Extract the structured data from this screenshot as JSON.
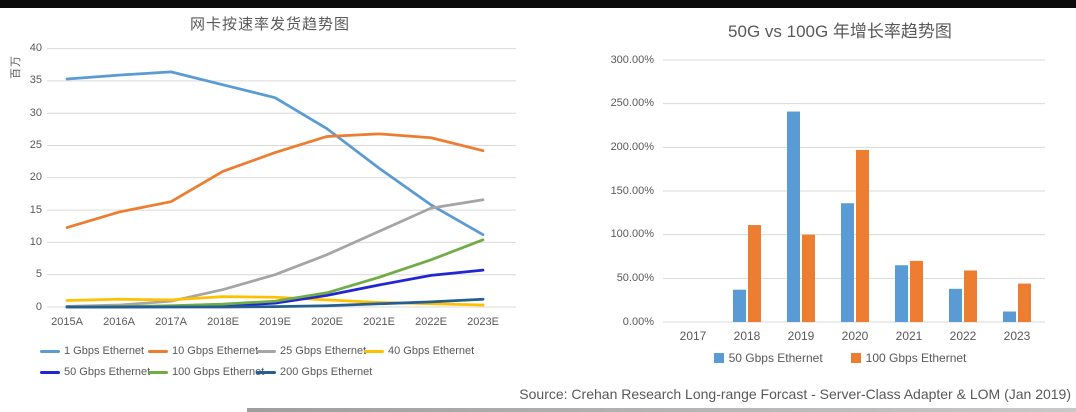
{
  "page": {
    "source_note": "Source: Crehan Research Long-range Forcast - Server-Class Adapter & LOM (Jan 2019)"
  },
  "chart_data": [
    {
      "type": "line",
      "title": "网卡按速率发货趋势图",
      "xlabel": "",
      "ylabel": "百万",
      "categories": [
        "2015A",
        "2016A",
        "2017A",
        "2018E",
        "2019E",
        "2020E",
        "2021E",
        "2022E",
        "2023E"
      ],
      "series": [
        {
          "name": "1 Gbps Ethernet",
          "color": "#5B9BD5",
          "values": [
            35.3,
            35.9,
            36.4,
            34.4,
            32.4,
            27.6,
            21.5,
            15.8,
            11.2
          ]
        },
        {
          "name": "10 Gbps Ethernet",
          "color": "#ED7D31",
          "values": [
            12.3,
            14.7,
            16.3,
            21.0,
            23.9,
            26.4,
            26.8,
            26.2,
            24.2
          ]
        },
        {
          "name": "25 Gbps Ethernet",
          "color": "#A5A5A5",
          "values": [
            0.1,
            0.3,
            0.9,
            2.7,
            5.0,
            8.1,
            11.7,
            15.3,
            16.6
          ]
        },
        {
          "name": "40 Gbps Ethernet",
          "color": "#FFC000",
          "values": [
            1.0,
            1.2,
            1.1,
            1.6,
            1.5,
            1.1,
            0.7,
            0.5,
            0.3
          ]
        },
        {
          "name": "50 Gbps Ethernet",
          "color": "#2226D2",
          "values": [
            0.0,
            0.0,
            0.05,
            0.15,
            0.6,
            1.8,
            3.4,
            4.9,
            5.7
          ]
        },
        {
          "name": "100 Gbps Ethernet",
          "color": "#70AD47",
          "values": [
            0.0,
            0.05,
            0.2,
            0.45,
            0.9,
            2.2,
            4.6,
            7.3,
            10.4
          ]
        },
        {
          "name": "200 Gbps Ethernet",
          "color": "#255E91",
          "values": [
            0.0,
            0.0,
            0.0,
            0.0,
            0.05,
            0.2,
            0.5,
            0.8,
            1.2
          ]
        }
      ],
      "ylim": [
        0,
        40
      ],
      "ytick_step": 5,
      "grid": true,
      "legend_position": "bottom",
      "gridline_color": "#D9D9D9",
      "text_color": "#595959"
    },
    {
      "type": "bar",
      "title": "50G vs 100G 年增长率趋势图",
      "xlabel": "",
      "ylabel": "",
      "categories": [
        "2017",
        "2018",
        "2019",
        "2020",
        "2021",
        "2022",
        "2023"
      ],
      "series": [
        {
          "name": "50 Gbps Ethernet",
          "color": "#5B9BD5",
          "values": [
            0,
            37,
            241,
            136,
            65,
            38,
            12
          ]
        },
        {
          "name": "100 Gbps Ethernet",
          "color": "#ED7D31",
          "values": [
            0,
            111,
            100,
            197,
            70,
            59,
            44
          ]
        }
      ],
      "ylim": [
        0,
        300
      ],
      "ytick_step": 50,
      "ytick_format": "percent2",
      "grid": true,
      "legend_position": "bottom",
      "gridline_color": "#D9D9D9",
      "text_color": "#595959"
    }
  ]
}
